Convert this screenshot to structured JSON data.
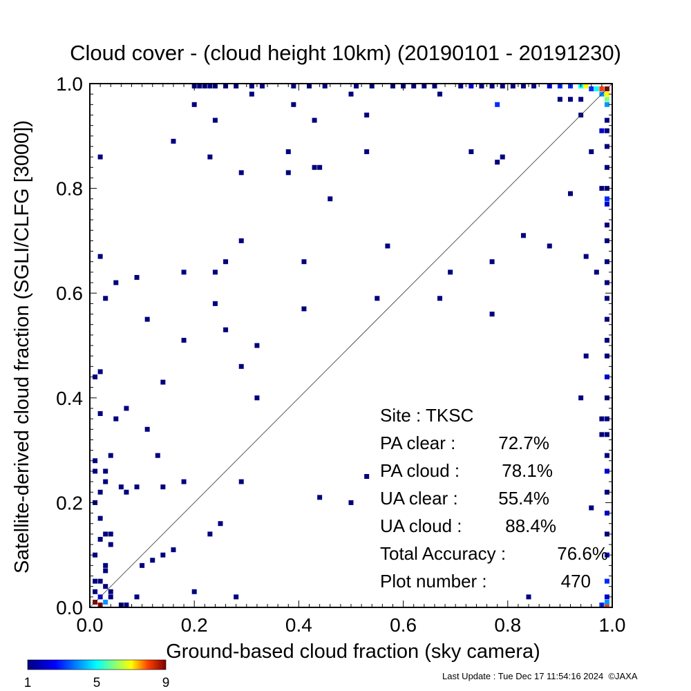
{
  "chart_data": {
    "type": "heatmap",
    "title": "Cloud cover - (cloud height 10km)  (20190101 - 20191230)",
    "xlabel": "Ground-based cloud fraction (sky camera)",
    "ylabel": "Satellite-derived cloud fraction (SGLI/CLFG [3000])",
    "xlim": [
      0,
      1
    ],
    "ylim": [
      0,
      1
    ],
    "xticks": [
      "0.0",
      "0.2",
      "0.4",
      "0.6",
      "0.8",
      "1.0"
    ],
    "yticks": [
      "0.0",
      "0.2",
      "0.4",
      "0.6",
      "0.8",
      "1.0"
    ],
    "grid": false,
    "reference_line": "1:1 diagonal",
    "colorbar": {
      "min": 1,
      "max": 9,
      "labels": [
        "1",
        "5",
        "9"
      ]
    },
    "stats": [
      {
        "label": "Site : TKSC",
        "value": ""
      },
      {
        "label": "PA clear :",
        "value": "72.7%"
      },
      {
        "label": "PA cloud :",
        "value": "78.1%"
      },
      {
        "label": "UA clear :",
        "value": "55.4%"
      },
      {
        "label": "UA cloud :",
        "value": "88.4%"
      },
      {
        "label": "Total Accuracy :",
        "value": "76.6%"
      },
      {
        "label": "Plot number :",
        "value": "470"
      }
    ],
    "points": [
      [
        0.02,
        0.86,
        1
      ],
      [
        0.02,
        0.67,
        1
      ],
      [
        0.03,
        0.59,
        1
      ],
      [
        0.05,
        0.62,
        1
      ],
      [
        0.09,
        0.63,
        1
      ],
      [
        0.11,
        0.55,
        1
      ],
      [
        0.18,
        0.64,
        1
      ],
      [
        0.18,
        0.51,
        1
      ],
      [
        0.24,
        0.64,
        1
      ],
      [
        0.24,
        0.58,
        1
      ],
      [
        0.26,
        0.66,
        1
      ],
      [
        0.26,
        0.53,
        1
      ],
      [
        0.29,
        0.7,
        1
      ],
      [
        0.29,
        0.46,
        1
      ],
      [
        0.32,
        0.5,
        1
      ],
      [
        0.32,
        0.4,
        1
      ],
      [
        0.41,
        0.66,
        1
      ],
      [
        0.41,
        0.57,
        1
      ],
      [
        0.55,
        0.59,
        1
      ],
      [
        0.57,
        0.69,
        1
      ],
      [
        0.67,
        0.59,
        1
      ],
      [
        0.69,
        0.64,
        1
      ],
      [
        0.77,
        0.66,
        1
      ],
      [
        0.77,
        0.56,
        1
      ],
      [
        0.83,
        0.71,
        1
      ],
      [
        0.88,
        0.69,
        1
      ],
      [
        0.95,
        0.67,
        1
      ],
      [
        0.97,
        0.64,
        1
      ],
      [
        0.95,
        0.48,
        1
      ],
      [
        0.94,
        0.4,
        1
      ],
      [
        0.96,
        0.19,
        1
      ],
      [
        0.84,
        0.02,
        1
      ],
      [
        0.92,
        0.79,
        1
      ],
      [
        0.2,
        0.96,
        1
      ],
      [
        0.31,
        0.98,
        1
      ],
      [
        0.39,
        0.96,
        1
      ],
      [
        0.5,
        0.98,
        1
      ],
      [
        0.67,
        0.98,
        1
      ],
      [
        0.78,
        0.96,
        3
      ],
      [
        0.16,
        0.89,
        1
      ],
      [
        0.24,
        0.93,
        1
      ],
      [
        0.23,
        0.86,
        1
      ],
      [
        0.29,
        0.83,
        1
      ],
      [
        0.38,
        0.87,
        1
      ],
      [
        0.38,
        0.83,
        1
      ],
      [
        0.43,
        0.93,
        1
      ],
      [
        0.43,
        0.84,
        1
      ],
      [
        0.44,
        0.84,
        1
      ],
      [
        0.46,
        0.78,
        1
      ],
      [
        0.53,
        0.94,
        1
      ],
      [
        0.53,
        0.87,
        1
      ],
      [
        0.73,
        0.87,
        1
      ],
      [
        0.78,
        0.85,
        1
      ],
      [
        0.79,
        0.86,
        1
      ],
      [
        0.96,
        0.87,
        1
      ],
      [
        0.94,
        0.94,
        1
      ],
      [
        0.9,
        0.97,
        1
      ],
      [
        0.92,
        0.97,
        1
      ],
      [
        0.94,
        0.97,
        1
      ],
      [
        0.01,
        0.44,
        1
      ],
      [
        0.02,
        0.45,
        1
      ],
      [
        0.02,
        0.37,
        1
      ],
      [
        0.05,
        0.36,
        1
      ],
      [
        0.07,
        0.38,
        1
      ],
      [
        0.11,
        0.34,
        1
      ],
      [
        0.14,
        0.43,
        1
      ],
      [
        0.13,
        0.29,
        1
      ],
      [
        0.04,
        0.29,
        1
      ],
      [
        0.01,
        0.28,
        1
      ],
      [
        0.03,
        0.26,
        1
      ],
      [
        0.01,
        0.26,
        1
      ],
      [
        0.03,
        0.24,
        1
      ],
      [
        0.06,
        0.23,
        1
      ],
      [
        0.07,
        0.22,
        1
      ],
      [
        0.09,
        0.23,
        1
      ],
      [
        0.14,
        0.23,
        1
      ],
      [
        0.18,
        0.24,
        1
      ],
      [
        0.29,
        0.24,
        1
      ],
      [
        0.02,
        0.22,
        1
      ],
      [
        0.01,
        0.2,
        1
      ],
      [
        0.02,
        0.17,
        1
      ],
      [
        0.03,
        0.14,
        1
      ],
      [
        0.04,
        0.14,
        1
      ],
      [
        0.02,
        0.13,
        1
      ],
      [
        0.04,
        0.12,
        1
      ],
      [
        0.01,
        0.1,
        1
      ],
      [
        0.03,
        0.08,
        1
      ],
      [
        0.03,
        0.07,
        1
      ],
      [
        0.01,
        0.05,
        1
      ],
      [
        0.02,
        0.05,
        1
      ],
      [
        0.03,
        0.04,
        1
      ],
      [
        0.01,
        0.03,
        1
      ],
      [
        0.04,
        0.03,
        1
      ],
      [
        0.02,
        0.02,
        2
      ],
      [
        0.01,
        0.01,
        9
      ],
      [
        0.02,
        0.0,
        9
      ],
      [
        0.03,
        0.01,
        4
      ],
      [
        0.04,
        0.02,
        1
      ],
      [
        0.06,
        0.0,
        1
      ],
      [
        0.07,
        0.0,
        1
      ],
      [
        0.09,
        0.02,
        1
      ],
      [
        0.1,
        0.08,
        1
      ],
      [
        0.12,
        0.09,
        1
      ],
      [
        0.14,
        0.1,
        1
      ],
      [
        0.16,
        0.11,
        1
      ],
      [
        0.2,
        0.03,
        1
      ],
      [
        0.23,
        0.14,
        1
      ],
      [
        0.25,
        0.16,
        1
      ],
      [
        0.28,
        0.02,
        1
      ],
      [
        0.44,
        0.21,
        1
      ],
      [
        0.5,
        0.2,
        1
      ],
      [
        0.53,
        0.25,
        1
      ],
      [
        0.99,
        0.99,
        9
      ],
      [
        0.98,
        0.99,
        8
      ],
      [
        0.97,
        0.99,
        5
      ],
      [
        0.96,
        0.99,
        3
      ],
      [
        0.99,
        0.98,
        7
      ],
      [
        0.99,
        0.97,
        6
      ],
      [
        0.98,
        0.98,
        4
      ],
      [
        0.99,
        0.96,
        4
      ],
      [
        0.99,
        0.0,
        8
      ],
      [
        0.98,
        0.0,
        3
      ],
      [
        0.99,
        0.01,
        4
      ],
      [
        0.99,
        0.02,
        2
      ],
      [
        0.99,
        0.05,
        3
      ],
      [
        0.99,
        0.1,
        2
      ],
      [
        0.99,
        0.14,
        1
      ],
      [
        0.99,
        0.18,
        2
      ],
      [
        0.99,
        0.22,
        1
      ],
      [
        0.99,
        0.26,
        2
      ],
      [
        0.99,
        0.29,
        1
      ],
      [
        0.99,
        0.33,
        1
      ],
      [
        0.98,
        0.33,
        1
      ],
      [
        0.99,
        0.36,
        1
      ],
      [
        0.98,
        0.36,
        1
      ],
      [
        0.99,
        0.4,
        1
      ],
      [
        0.99,
        0.44,
        2
      ],
      [
        0.99,
        0.48,
        1
      ],
      [
        0.99,
        0.51,
        1
      ],
      [
        0.99,
        0.55,
        1
      ],
      [
        0.99,
        0.59,
        1
      ],
      [
        0.99,
        0.62,
        1
      ],
      [
        0.99,
        0.66,
        1
      ],
      [
        0.99,
        0.7,
        1
      ],
      [
        0.99,
        0.73,
        1
      ],
      [
        0.99,
        0.77,
        2
      ],
      [
        0.99,
        0.8,
        1
      ],
      [
        0.98,
        0.8,
        1
      ],
      [
        0.99,
        0.84,
        1
      ],
      [
        0.99,
        0.88,
        1
      ],
      [
        0.99,
        0.91,
        1
      ],
      [
        0.98,
        0.91,
        2
      ],
      [
        0.99,
        0.93,
        1
      ],
      [
        0.99,
        0.78,
        3
      ],
      [
        0.2,
        1.0,
        1
      ],
      [
        0.21,
        1.0,
        1
      ],
      [
        0.22,
        1.0,
        1
      ],
      [
        0.23,
        1.0,
        1
      ],
      [
        0.24,
        1.0,
        1
      ],
      [
        0.26,
        1.0,
        1
      ],
      [
        0.28,
        1.0,
        1
      ],
      [
        0.31,
        1.0,
        1
      ],
      [
        0.33,
        1.0,
        1
      ],
      [
        0.39,
        1.0,
        1
      ],
      [
        0.42,
        1.0,
        1
      ],
      [
        0.45,
        1.0,
        1
      ],
      [
        0.51,
        1.0,
        1
      ],
      [
        0.54,
        1.0,
        1
      ],
      [
        0.58,
        1.0,
        1
      ],
      [
        0.6,
        1.0,
        1
      ],
      [
        0.62,
        1.0,
        1
      ],
      [
        0.64,
        1.0,
        1
      ],
      [
        0.66,
        1.0,
        1
      ],
      [
        0.71,
        1.0,
        1
      ],
      [
        0.73,
        1.0,
        2
      ],
      [
        0.75,
        1.0,
        1
      ],
      [
        0.77,
        1.0,
        1
      ],
      [
        0.79,
        1.0,
        1
      ],
      [
        0.81,
        1.0,
        1
      ],
      [
        0.83,
        1.0,
        1
      ],
      [
        0.85,
        1.0,
        1
      ],
      [
        0.88,
        1.0,
        2
      ],
      [
        0.9,
        1.0,
        3
      ],
      [
        0.92,
        1.0,
        3
      ],
      [
        0.94,
        1.0,
        5
      ],
      [
        0.95,
        1.0,
        7
      ]
    ]
  },
  "footer": {
    "text": "Last Update : Tue Dec 17 11:54:16 2024  ©JAXA"
  }
}
